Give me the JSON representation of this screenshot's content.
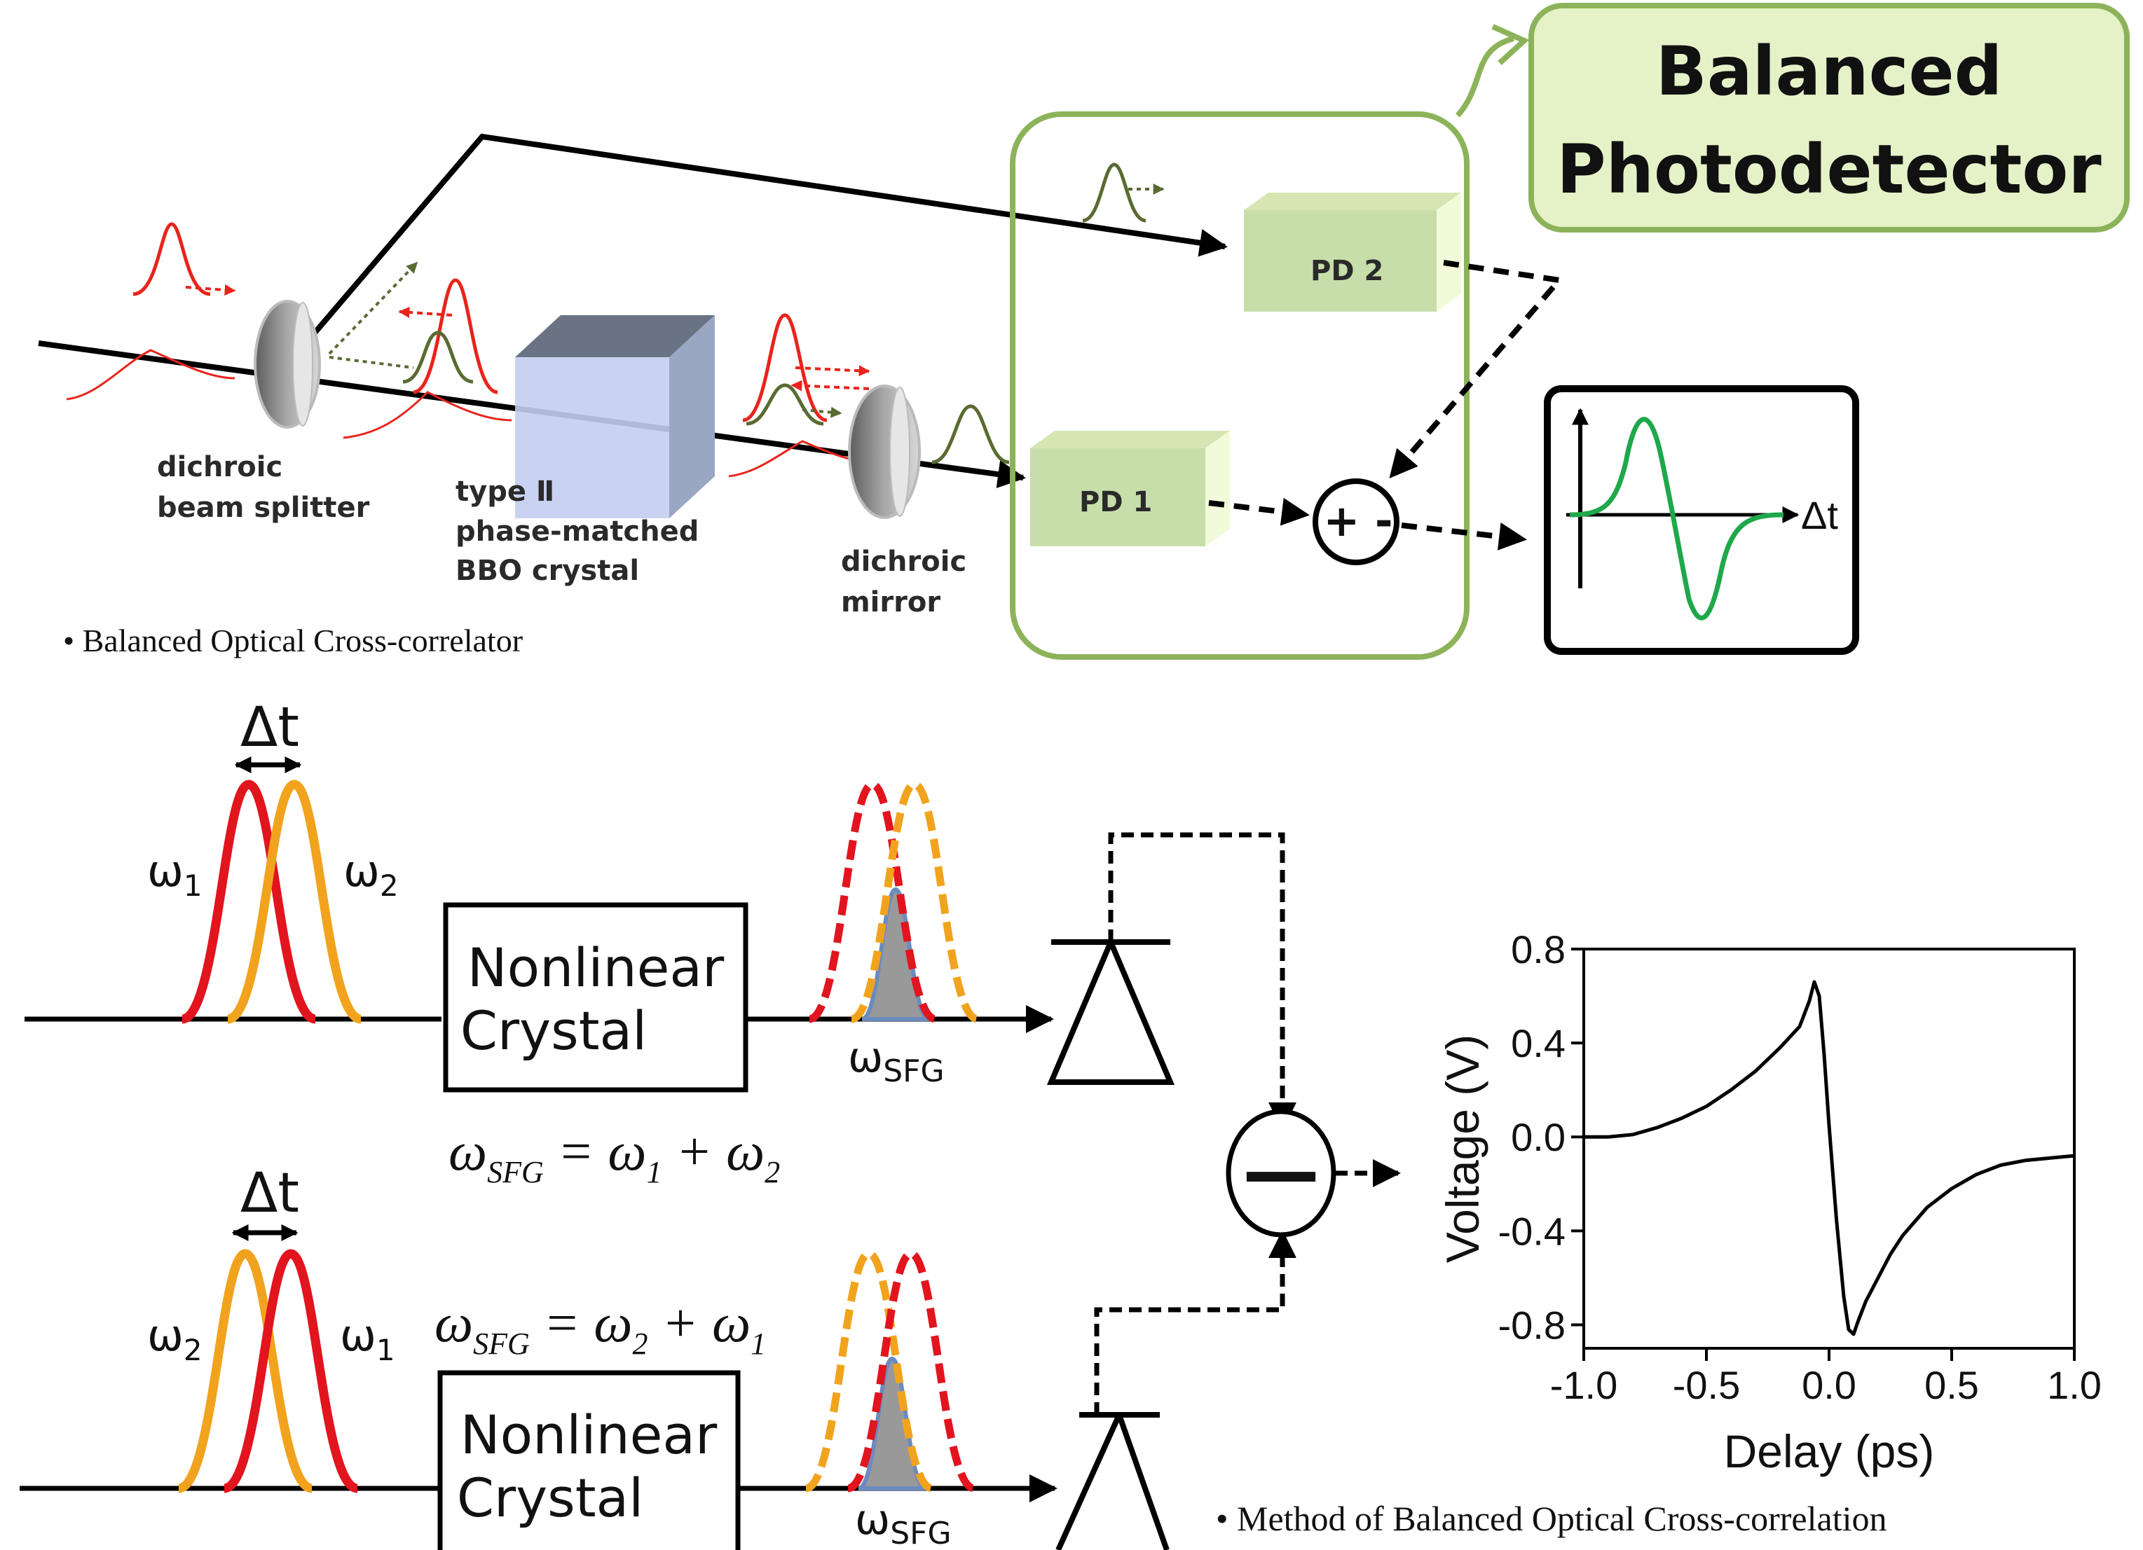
{
  "setup": {
    "title_line1": "Balanced",
    "title_line2": "Photodetector",
    "pd1": "PD 1",
    "pd2": "PD 2",
    "beam_splitter_line1": "dichroic",
    "beam_splitter_line2": "beam splitter",
    "crystal_line1": "type Ⅱ",
    "crystal_line2": "phase-matched",
    "crystal_line3": "BBO crystal",
    "mirror_line1": "dichroic",
    "mirror_line2": "mirror",
    "subtractor_sign": "+ -",
    "inset_axis_label": "Δt",
    "caption": "• Balanced Optical Cross-correlator"
  },
  "method": {
    "top_delta": "Δt",
    "top_left_omega": "ω",
    "top_left_sub": "1",
    "top_right_omega": "ω",
    "top_right_sub": "2",
    "bottom_delta": "Δt",
    "bottom_left_omega": "ω",
    "bottom_left_sub": "2",
    "bottom_right_omega": "ω",
    "bottom_right_sub": "1",
    "crystal_line1": "Nonlinear",
    "crystal_line2": "Crystal",
    "sfg_omega": "ω",
    "sfg_sub": "SFG",
    "eq_top": "ωSFG = ω1 + ω2",
    "eq_bottom": "ωSFG = ω2 + ω1",
    "minus_sign": "—",
    "caption": "• Method of  Balanced Optical Cross-correlation"
  },
  "colors": {
    "beam": "#000000",
    "red_pulse": "#e8241c",
    "orange_pulse": "#f2a31d",
    "green_pulse": "#5a6b32",
    "sfg_fill": "#999999",
    "box_border": "#8db35a",
    "box_fill": "#e5f2c8",
    "inset_trace": "#1fa84a"
  },
  "chart_data": {
    "type": "line",
    "xlabel": "Delay (ps)",
    "ylabel": "Voltage (V)",
    "xlim": [
      -1.0,
      1.0
    ],
    "ylim": [
      -0.9,
      0.8
    ],
    "xticks": [
      "-1.0",
      "-0.5",
      "0.0",
      "0.5",
      "1.0"
    ],
    "yticks": [
      "0.8",
      "0.4",
      "0.0",
      "-0.4",
      "-0.8"
    ],
    "series": [
      {
        "x": [
          -1.0,
          -0.9,
          -0.8,
          -0.7,
          -0.6,
          -0.5,
          -0.4,
          -0.3,
          -0.2,
          -0.12,
          -0.08,
          -0.06,
          -0.04,
          -0.02,
          0.0,
          0.03,
          0.06,
          0.08,
          0.1,
          0.12,
          0.15,
          0.2,
          0.25,
          0.3,
          0.4,
          0.5,
          0.6,
          0.7,
          0.8,
          0.9,
          1.0
        ],
        "y": [
          0.0,
          0.0,
          0.01,
          0.04,
          0.08,
          0.13,
          0.2,
          0.28,
          0.38,
          0.47,
          0.58,
          0.66,
          0.6,
          0.35,
          0.05,
          -0.35,
          -0.68,
          -0.82,
          -0.84,
          -0.78,
          -0.7,
          -0.6,
          -0.5,
          -0.42,
          -0.3,
          -0.22,
          -0.16,
          -0.12,
          -0.1,
          -0.09,
          -0.08
        ]
      }
    ]
  }
}
